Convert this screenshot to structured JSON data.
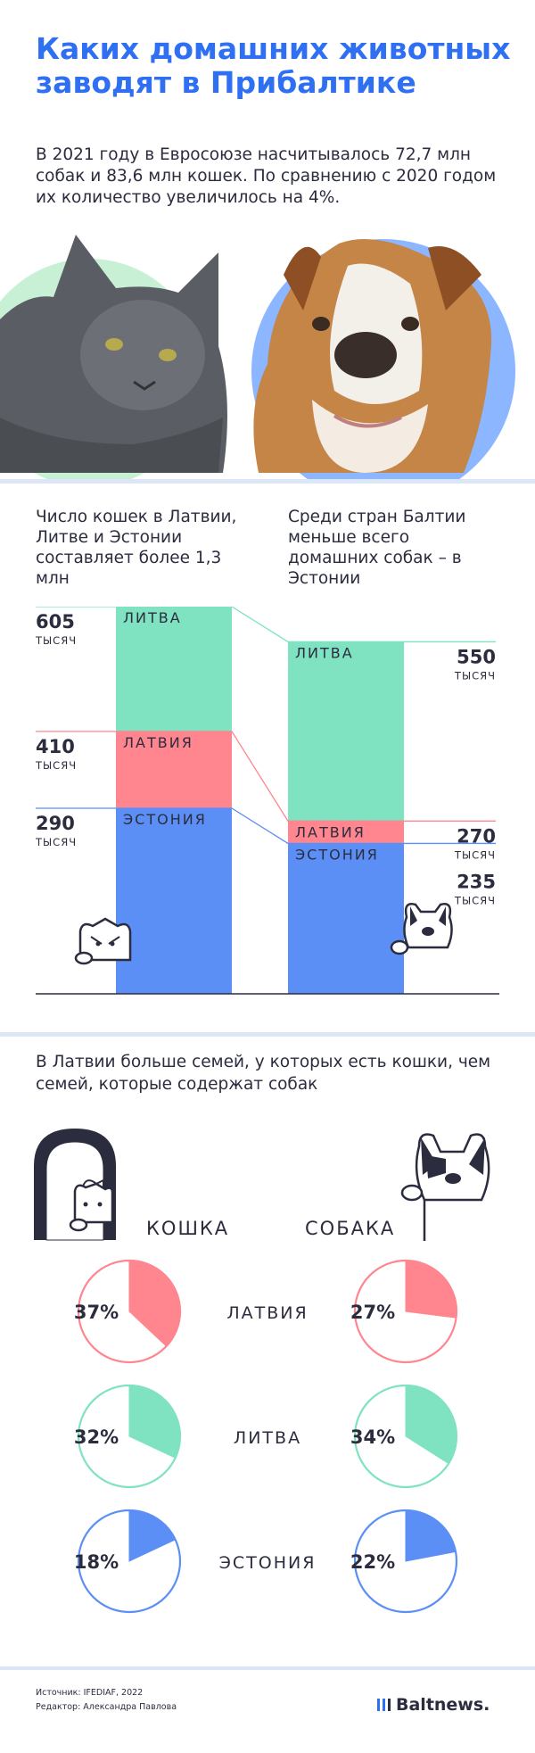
{
  "title": "Каких домашних животных заводят в Прибалтике",
  "intro": "В 2021 году в Евросоюзе насчитывалось 72,7 млн собак и 83,6 млн кошек.  По сравнению с 2020 годом их количество увеличилось на 4%.",
  "section_cats_heading": "Число кошек в Латвии, Литве и Эстонии составляет более 1,3 млн",
  "section_dogs_heading": "Среди стран Балтии меньше всего домашних собак – в Эстонии",
  "unit": "ТЫСЯЧ",
  "families_heading": "В Латвии больше семей, у которых есть кошки, чем семей, которые содержат собак",
  "species_labels": {
    "cat": "КОШКА",
    "dog": "СОБАКА"
  },
  "source_line": "Источник: IFEDIAF, 2022",
  "editor_line": "Редактор: Александра Павлова",
  "logo_text": "Baltnews.",
  "colors": {
    "title": "#2f6ff2",
    "lithuania": "#7fe2c0",
    "latvia": "#ff858f",
    "estonia": "#5b8ff5",
    "dark": "#2b2d3f"
  },
  "chart_data": [
    {
      "type": "bar",
      "title": "Число кошек в Латвии, Литве и Эстонии составляет более 1,3 млн",
      "ylabel": "ТЫСЯЧ",
      "categories": [
        "Кошки",
        "Собаки"
      ],
      "series": [
        {
          "name": "ЛИТВА",
          "values": [
            605,
            550
          ]
        },
        {
          "name": "ЛАТВИЯ",
          "values": [
            410,
            270
          ]
        },
        {
          "name": "ЭСТОНИЯ",
          "values": [
            290,
            235
          ]
        }
      ],
      "ylim": [
        0,
        605
      ]
    },
    {
      "type": "pie",
      "title": "В Латвии больше семей, у которых есть кошки, чем семей, которые содержат собак",
      "groups": [
        "КОШКА",
        "СОБАКА"
      ],
      "series": [
        {
          "name": "ЛАТВИЯ",
          "values": [
            37,
            27
          ]
        },
        {
          "name": "ЛИТВА",
          "values": [
            32,
            34
          ]
        },
        {
          "name": "ЭСТОНИЯ",
          "values": [
            18,
            22
          ]
        }
      ]
    }
  ]
}
